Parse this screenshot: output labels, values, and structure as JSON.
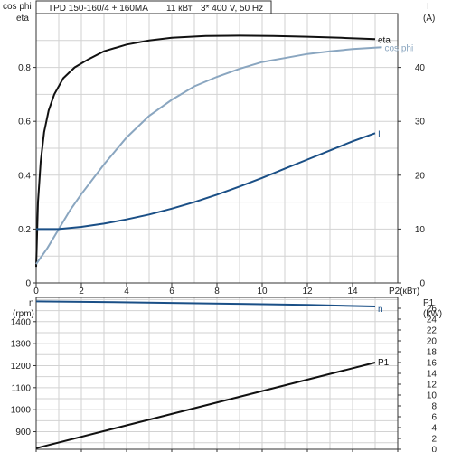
{
  "header": {
    "title": "TPD 150-160/4 + 160MA",
    "power": "11 кВт",
    "supply": "3* 400 V, 50 Hz"
  },
  "chart_data": [
    {
      "type": "line",
      "panel": "top",
      "xlabel": "P2(кВт)",
      "xlim": [
        0,
        16
      ],
      "x_ticks": [
        0,
        2,
        4,
        6,
        8,
        10,
        12,
        14
      ],
      "left_axis": {
        "label_lines": [
          "cos phi",
          "eta"
        ],
        "lim": [
          0,
          1.0
        ],
        "ticks": [
          0,
          0.2,
          0.4,
          0.6,
          0.8
        ]
      },
      "right_axis": {
        "label_lines": [
          "I",
          "(A)"
        ],
        "lim": [
          0,
          50
        ],
        "ticks": [
          0,
          10,
          20,
          30,
          40
        ]
      },
      "grid": true,
      "series": [
        {
          "name": "eta",
          "axis": "left",
          "color": "#111111",
          "points": [
            [
              0,
              0.06
            ],
            [
              0.08,
              0.3
            ],
            [
              0.2,
              0.45
            ],
            [
              0.35,
              0.56
            ],
            [
              0.55,
              0.64
            ],
            [
              0.8,
              0.7
            ],
            [
              1.2,
              0.76
            ],
            [
              1.7,
              0.8
            ],
            [
              2.3,
              0.83
            ],
            [
              3,
              0.86
            ],
            [
              4,
              0.885
            ],
            [
              5,
              0.9
            ],
            [
              6,
              0.91
            ],
            [
              7.5,
              0.917
            ],
            [
              9,
              0.918
            ],
            [
              10.5,
              0.917
            ],
            [
              12,
              0.914
            ],
            [
              13.5,
              0.91
            ],
            [
              15,
              0.905
            ]
          ]
        },
        {
          "name": "cos phi",
          "axis": "left",
          "color": "#8aa6c0",
          "points": [
            [
              0,
              0.07
            ],
            [
              0.5,
              0.13
            ],
            [
              1,
              0.2
            ],
            [
              1.5,
              0.27
            ],
            [
              2,
              0.33
            ],
            [
              3,
              0.44
            ],
            [
              4,
              0.54
            ],
            [
              5,
              0.62
            ],
            [
              6,
              0.68
            ],
            [
              7,
              0.73
            ],
            [
              8,
              0.765
            ],
            [
              9,
              0.795
            ],
            [
              10,
              0.82
            ],
            [
              11,
              0.835
            ],
            [
              12,
              0.85
            ],
            [
              13,
              0.86
            ],
            [
              14,
              0.868
            ],
            [
              15.3,
              0.875
            ]
          ]
        },
        {
          "name": "I",
          "axis": "right",
          "color": "#1a4f86",
          "points": [
            [
              0,
              10
            ],
            [
              1,
              10
            ],
            [
              2,
              10.4
            ],
            [
              3,
              11
            ],
            [
              4,
              11.8
            ],
            [
              5,
              12.7
            ],
            [
              6,
              13.8
            ],
            [
              7,
              15
            ],
            [
              8,
              16.4
            ],
            [
              9,
              17.9
            ],
            [
              10,
              19.5
            ],
            [
              11,
              21.2
            ],
            [
              12,
              22.9
            ],
            [
              13,
              24.6
            ],
            [
              14,
              26.3
            ],
            [
              15,
              27.8
            ]
          ]
        }
      ]
    },
    {
      "type": "line",
      "panel": "bottom",
      "xlim": [
        0,
        16
      ],
      "left_axis": {
        "label_lines": [
          "n",
          "(rpm)"
        ],
        "lim": [
          820,
          1510
        ],
        "ticks": [
          900,
          1000,
          1100,
          1200,
          1300,
          1400
        ]
      },
      "right_axis": {
        "label_lines": [
          "P1",
          "(kW)"
        ],
        "lim": [
          0,
          28
        ],
        "ticks": [
          0,
          2,
          4,
          6,
          8,
          10,
          12,
          14,
          16,
          18,
          20,
          22,
          24,
          26
        ]
      },
      "grid": true,
      "series": [
        {
          "name": "n",
          "axis": "left",
          "color": "#1a4f86",
          "points": [
            [
              0,
              1492
            ],
            [
              3,
              1489
            ],
            [
              6,
              1485
            ],
            [
              9,
              1481
            ],
            [
              12,
              1476
            ],
            [
              15,
              1469
            ]
          ]
        },
        {
          "name": "P1",
          "axis": "right",
          "color": "#111111",
          "points": [
            [
              0,
              0.2
            ],
            [
              15,
              16
            ]
          ]
        }
      ]
    }
  ]
}
